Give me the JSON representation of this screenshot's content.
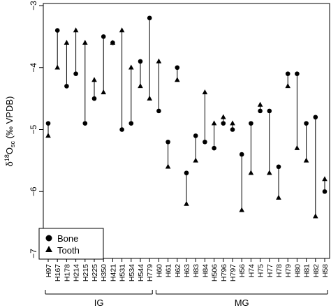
{
  "chart_data": {
    "type": "scatter",
    "ylabel_parts": {
      "delta": "δ",
      "sup": "18",
      "o": "O",
      "sub": "sc",
      "rest": " (‰ VPDB)"
    },
    "ylim": [
      -7,
      -3
    ],
    "yticks": [
      -7,
      -6,
      -5,
      -4,
      -3
    ],
    "categories": [
      "H97",
      "H167",
      "H178",
      "H214",
      "H215",
      "H225",
      "H350",
      "H421",
      "H531",
      "H534",
      "H544",
      "H779",
      "H60",
      "H61",
      "H62",
      "H63",
      "H83",
      "H84",
      "H506",
      "H796",
      "H797",
      "H56",
      "H74",
      "H75",
      "H77",
      "H78",
      "H79",
      "H80",
      "H81",
      "H82",
      "H58"
    ],
    "groups": [
      {
        "label": "IG",
        "start": 0,
        "end": 11
      },
      {
        "label": "MG",
        "start": 12,
        "end": 30
      }
    ],
    "series": [
      {
        "name": "Bone",
        "marker": "circle",
        "values": [
          -4.9,
          -3.4,
          -4.3,
          -4.1,
          -4.9,
          -4.5,
          -3.5,
          -3.6,
          -5.0,
          -4.9,
          -3.9,
          -3.2,
          -4.7,
          -5.2,
          -4.0,
          -5.7,
          -5.1,
          -5.2,
          -5.3,
          -4.9,
          -5.0,
          -5.4,
          -4.9,
          -4.7,
          -4.7,
          -5.6,
          -4.1,
          -4.1,
          -4.9,
          -4.8,
          -6.0
        ]
      },
      {
        "name": "Tooth",
        "marker": "triangle",
        "values": [
          -5.1,
          -4.0,
          -3.6,
          -3.4,
          -3.6,
          -4.2,
          -4.4,
          -3.6,
          -3.4,
          -4.0,
          -4.3,
          -4.5,
          -3.9,
          -5.6,
          -4.2,
          -6.2,
          -5.5,
          -4.4,
          -4.9,
          -4.8,
          -4.9,
          -6.3,
          -5.7,
          -4.6,
          -5.7,
          -6.1,
          -4.3,
          -5.3,
          -5.5,
          -6.4,
          -5.8
        ]
      }
    ],
    "legend": {
      "placement": "bottom-left",
      "entries": [
        "Bone",
        "Tooth"
      ]
    }
  }
}
